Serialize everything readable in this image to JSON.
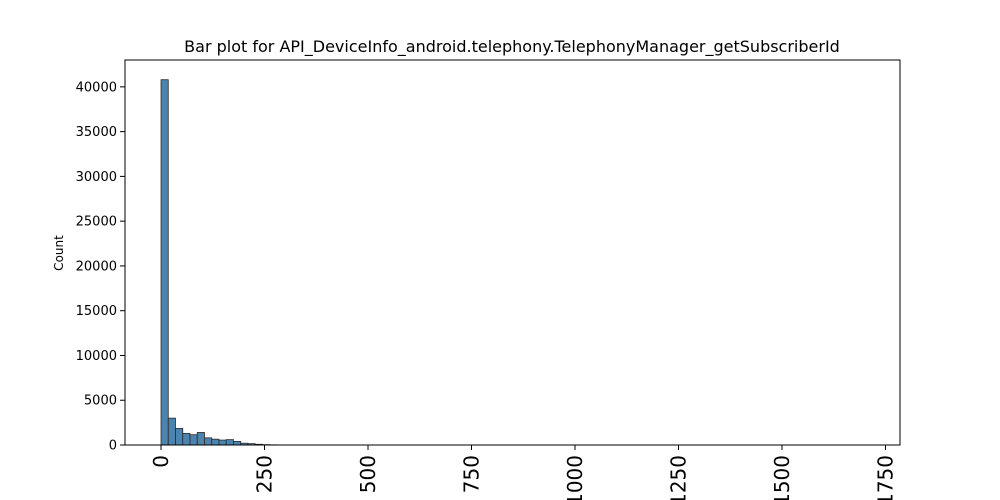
{
  "chart_data": {
    "type": "bar",
    "title": "Bar plot for API_DeviceInfo_android.telephony.TelephonyManager_getSubscriberId",
    "xlabel": "",
    "ylabel": "Count",
    "xlim": [
      -87,
      1785
    ],
    "ylim": [
      0,
      43000
    ],
    "grid": false,
    "legend": "none",
    "bar_color": "#4c84b0",
    "bar_edge_color": "#2b2b2b",
    "bin_width": 17.5,
    "bins": [
      {
        "start": 0,
        "value": 40800
      },
      {
        "start": 17.5,
        "value": 3000
      },
      {
        "start": 35,
        "value": 1850
      },
      {
        "start": 52.5,
        "value": 1300
      },
      {
        "start": 70,
        "value": 1150
      },
      {
        "start": 87.5,
        "value": 1400
      },
      {
        "start": 105,
        "value": 800
      },
      {
        "start": 122.5,
        "value": 650
      },
      {
        "start": 140,
        "value": 550
      },
      {
        "start": 157.5,
        "value": 600
      },
      {
        "start": 175,
        "value": 400
      },
      {
        "start": 192.5,
        "value": 200
      },
      {
        "start": 210,
        "value": 150
      },
      {
        "start": 227.5,
        "value": 80
      },
      {
        "start": 245,
        "value": 40
      },
      {
        "start": 262.5,
        "value": 20
      },
      {
        "start": 280,
        "value": 10
      },
      {
        "start": 297.5,
        "value": 5
      }
    ],
    "y_ticks": [
      {
        "value": 0,
        "label": "0"
      },
      {
        "value": 5000,
        "label": "5000"
      },
      {
        "value": 10000,
        "label": "10000"
      },
      {
        "value": 15000,
        "label": "15000"
      },
      {
        "value": 20000,
        "label": "20000"
      },
      {
        "value": 25000,
        "label": "25000"
      },
      {
        "value": 30000,
        "label": "30000"
      },
      {
        "value": 35000,
        "label": "35000"
      },
      {
        "value": 40000,
        "label": "40000"
      }
    ],
    "x_ticks": [
      {
        "value": 0,
        "label": "0"
      },
      {
        "value": 250,
        "label": "250"
      },
      {
        "value": 500,
        "label": "500"
      },
      {
        "value": 750,
        "label": "750"
      },
      {
        "value": 1000,
        "label": "1000"
      },
      {
        "value": 1250,
        "label": "1250"
      },
      {
        "value": 1500,
        "label": "1500"
      },
      {
        "value": 1750,
        "label": "1750"
      }
    ]
  }
}
